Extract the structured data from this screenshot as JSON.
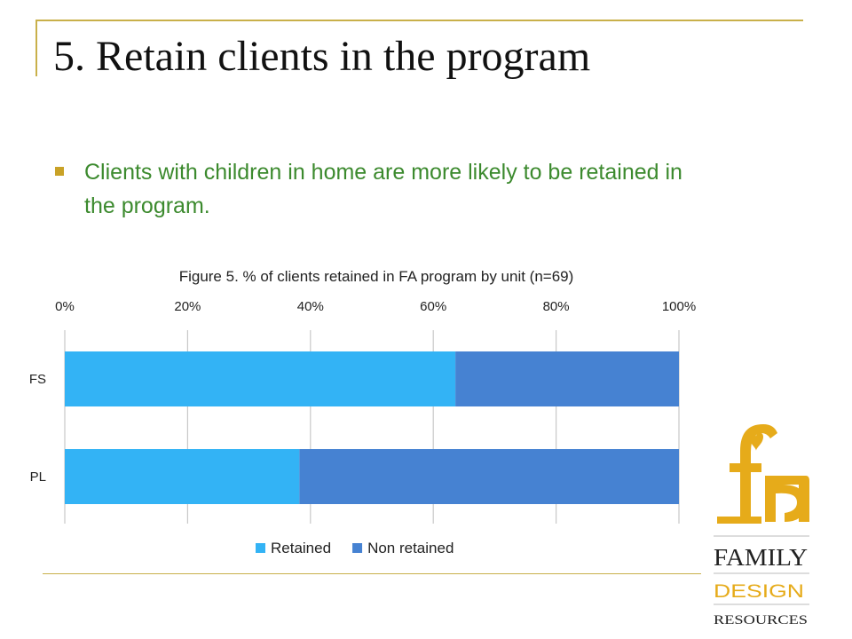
{
  "slide": {
    "title": "5. Retain clients in the program",
    "bullet": "Clients with children in home are more likely to be retained in the program."
  },
  "colors": {
    "accent_gold": "#c9a227",
    "bullet_text": "#3c8a2e",
    "retained": "#33b3f5",
    "non_retained": "#4682d2"
  },
  "chart_data": {
    "type": "bar",
    "orientation": "horizontal",
    "stacked": "percent",
    "title": "Figure 5. % of clients retained in FA program by unit (n=69)",
    "categories": [
      "FS",
      "PL"
    ],
    "series": [
      {
        "name": "Retained",
        "values": [
          63.6,
          38.2
        ],
        "color": "#33b3f5"
      },
      {
        "name": "Non retained",
        "values": [
          36.4,
          61.8
        ],
        "color": "#4682d2"
      }
    ],
    "xticks": [
      "0%",
      "20%",
      "40%",
      "60%",
      "80%",
      "100%"
    ],
    "xlim": [
      0,
      100
    ],
    "x_axis_position": "top",
    "grid": true,
    "legend": "bottom"
  },
  "logo": {
    "word1": "FAMILY",
    "word2": "DESIGN",
    "word3": "RESOURCES",
    "monogram_icon": "fdr-monogram-icon"
  }
}
